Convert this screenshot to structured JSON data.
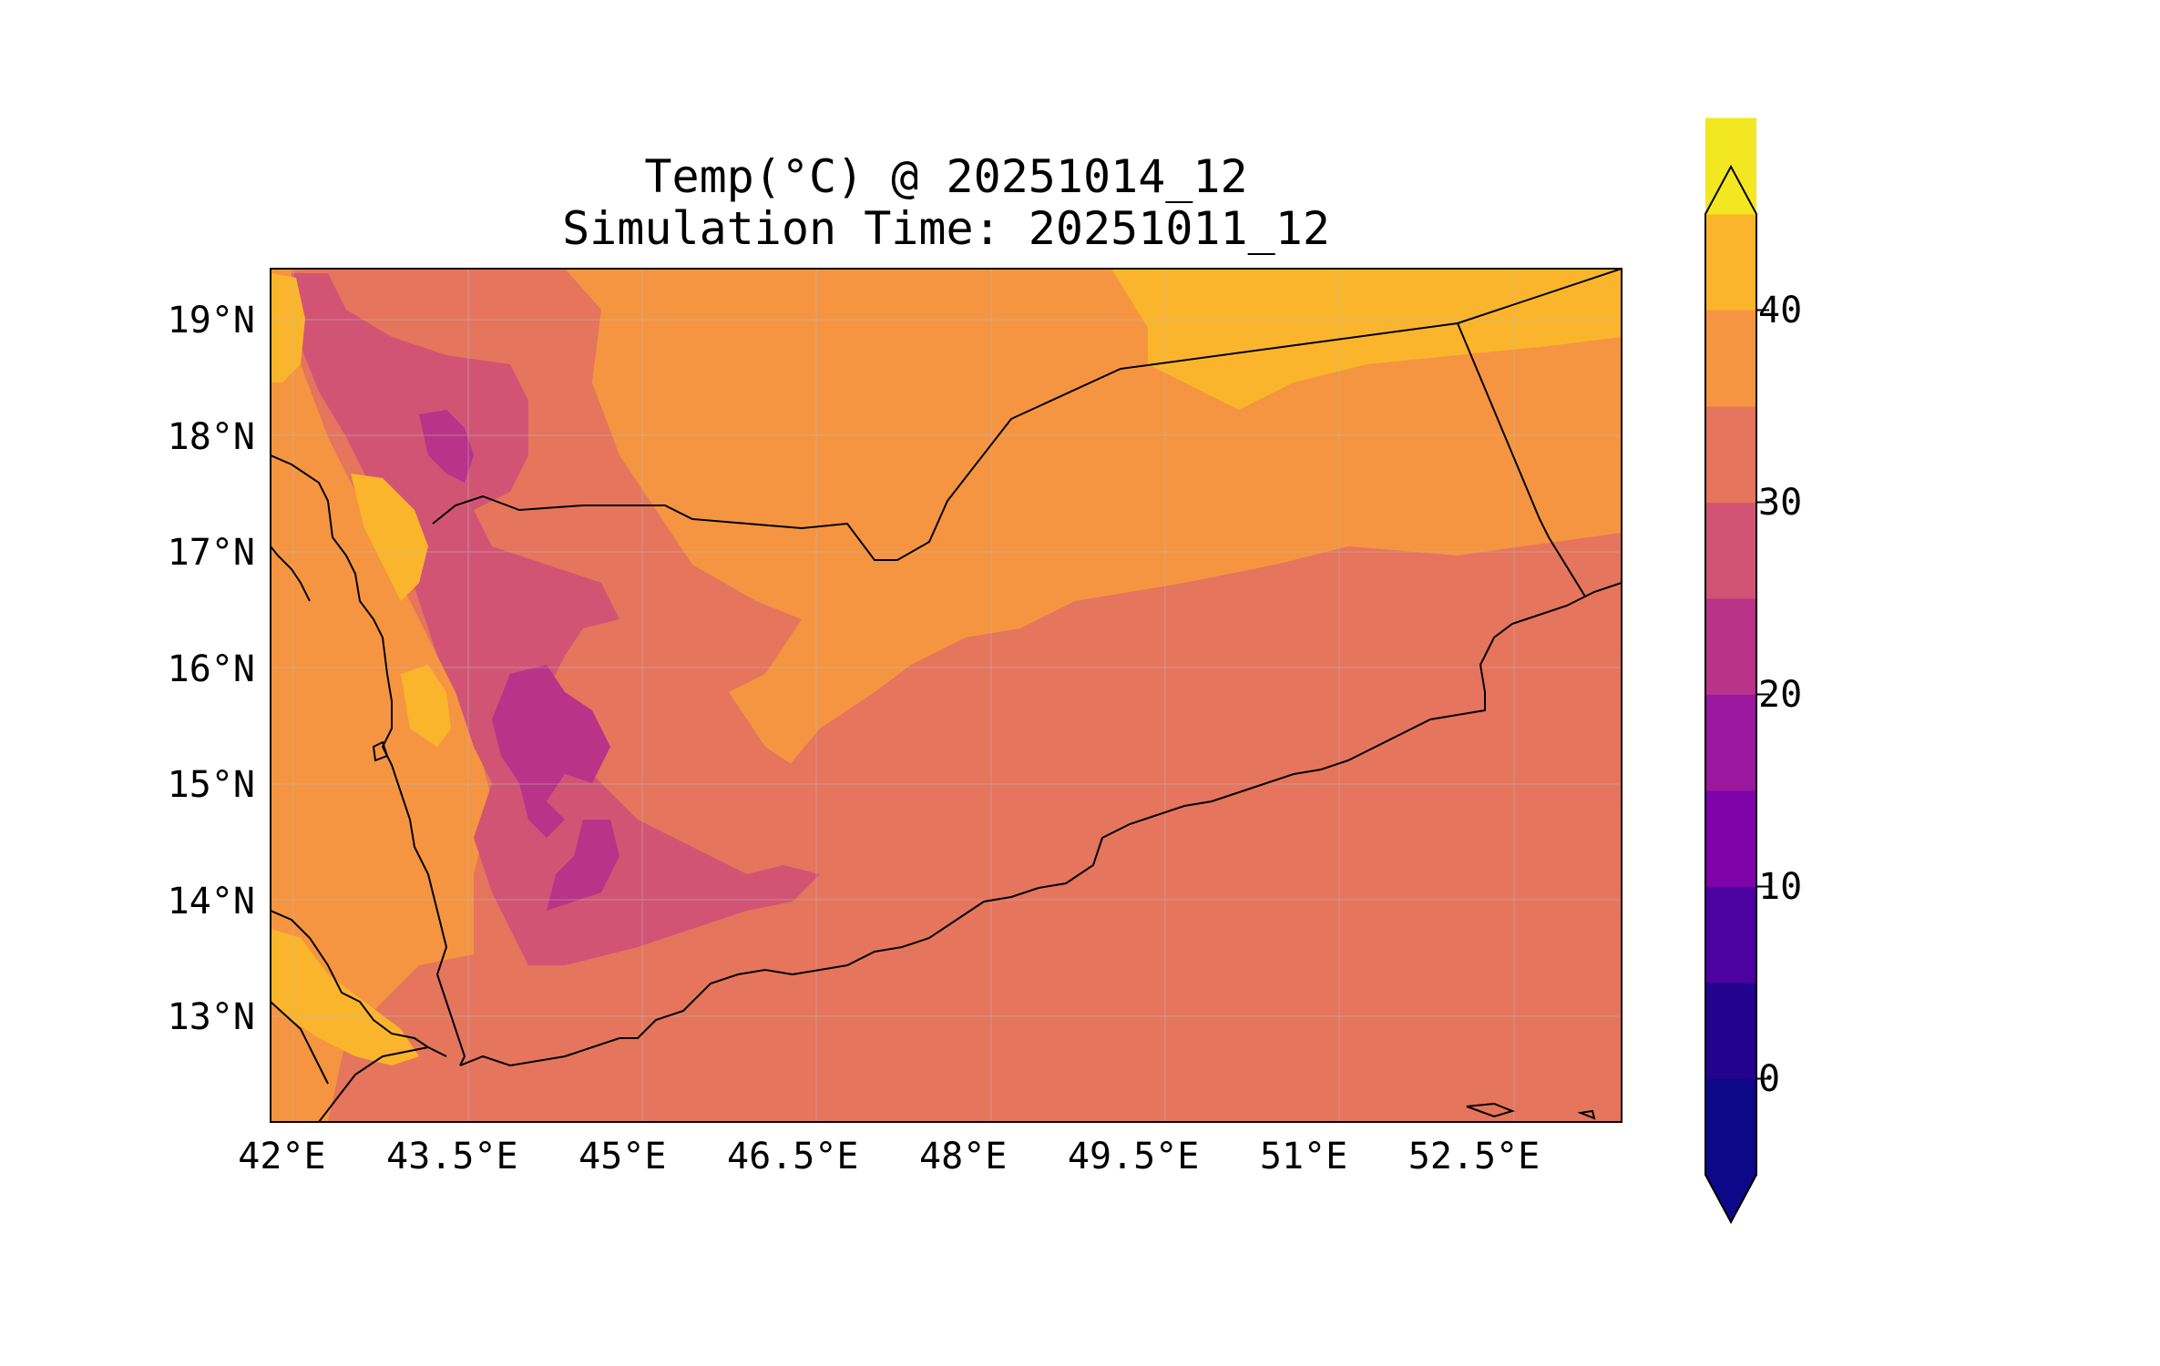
{
  "title": "Temp(°C) @ 20251014_12",
  "subtitle": "Simulation Time: 20251011_12",
  "map": {
    "lon_range": [
      41.9,
      53.8
    ],
    "lat_range": [
      12.1,
      19.45
    ],
    "lon_ticks": [
      {
        "value": 42.0,
        "label": "42°E"
      },
      {
        "value": 43.5,
        "label": "43.5°E"
      },
      {
        "value": 45.0,
        "label": "45°E"
      },
      {
        "value": 46.5,
        "label": "46.5°E"
      },
      {
        "value": 48.0,
        "label": "48°E"
      },
      {
        "value": 49.5,
        "label": "49.5°E"
      },
      {
        "value": 51.0,
        "label": "51°E"
      },
      {
        "value": 52.5,
        "label": "52.5°E"
      }
    ],
    "lat_ticks": [
      {
        "value": 19,
        "label": "19°N"
      },
      {
        "value": 18,
        "label": "18°N"
      },
      {
        "value": 17,
        "label": "17°N"
      },
      {
        "value": 16,
        "label": "16°N"
      },
      {
        "value": 15,
        "label": "15°N"
      },
      {
        "value": 14,
        "label": "14°N"
      },
      {
        "value": 13,
        "label": "13°N"
      }
    ],
    "gridlines": true,
    "colormap": "plasma"
  },
  "colorbar": {
    "placement": "right",
    "extend": "both",
    "levels": [
      -5,
      0,
      5,
      10,
      15,
      20,
      25,
      30,
      35,
      40,
      45
    ],
    "colors": [
      "#0d0887",
      "#22028f",
      "#4c02a1",
      "#7e03a8",
      "#9b179e",
      "#b93389",
      "#d25475",
      "#e5755c",
      "#f59541",
      "#fbb52c",
      "#f2e721"
    ],
    "ticks": [
      {
        "value": 0,
        "label": "0"
      },
      {
        "value": 10,
        "label": "10"
      },
      {
        "value": 20,
        "label": "20"
      },
      {
        "value": 30,
        "label": "30"
      },
      {
        "value": 40,
        "label": "40"
      }
    ]
  }
}
